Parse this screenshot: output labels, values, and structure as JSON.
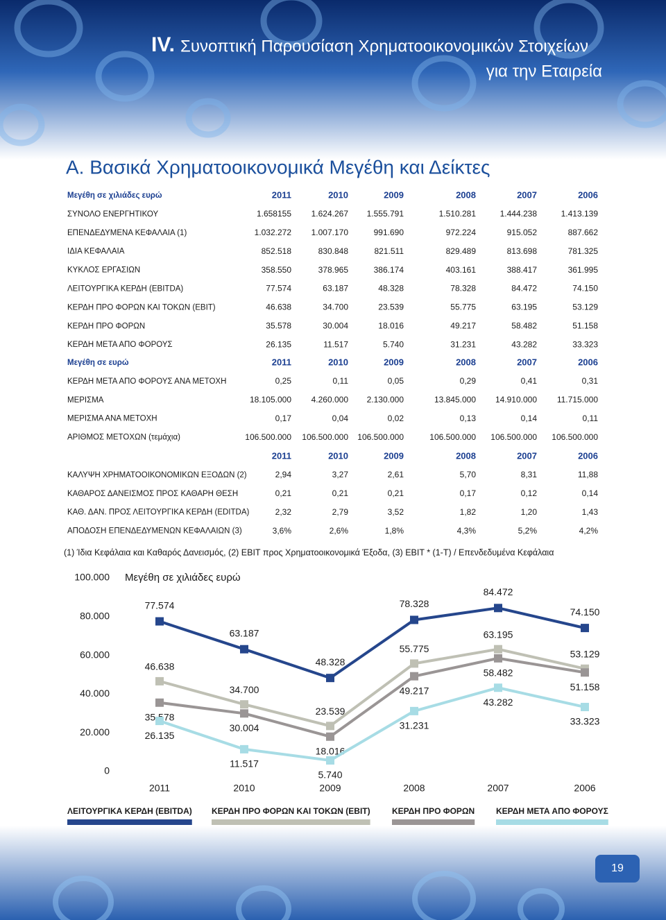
{
  "header": {
    "numeral": "IV.",
    "title_line1": "Συνοπτική Παρουσίαση Χρηματοοικονομικών Στοιχείων",
    "title_line2": "για την Εταιρεία"
  },
  "section_title": "Α. Βασικά Χρηματοοικονομικά Μεγέθη και Δείκτες",
  "tables": [
    {
      "label": "Μεγέθη σε χιλιάδες ευρώ",
      "columns": [
        "2011",
        "2010",
        "2009",
        "2008",
        "2007",
        "2006"
      ],
      "rows": [
        [
          "ΣΥΝΟΛΟ ΕΝΕΡΓΗΤΙΚΟΥ",
          "1.658155",
          "1.624.267",
          "1.555.791",
          "1.510.281",
          "1.444.238",
          "1.413.139"
        ],
        [
          "ΕΠΕΝΔΕΔΥΜΕΝΑ ΚΕΦΑΛΑΙΑ (1)",
          "1.032.272",
          "1.007.170",
          "991.690",
          "972.224",
          "915.052",
          "887.662"
        ],
        [
          "ΙΔΙΑ ΚΕΦΑΛΑΙΑ",
          "852.518",
          "830.848",
          "821.511",
          "829.489",
          "813.698",
          "781.325"
        ],
        [
          "ΚΥΚΛΟΣ ΕΡΓΑΣΙΩΝ",
          "358.550",
          "378.965",
          "386.174",
          "403.161",
          "388.417",
          "361.995"
        ],
        [
          "ΛΕΙΤΟΥΡΓΙΚΑ ΚΕΡΔΗ (EBITDA)",
          "77.574",
          "63.187",
          "48.328",
          "78.328",
          "84.472",
          "74.150"
        ],
        [
          "ΚΕΡΔΗ ΠΡΟ ΦΟΡΩΝ ΚΑΙ ΤΟΚΩΝ (EBIT)",
          "46.638",
          "34.700",
          "23.539",
          "55.775",
          "63.195",
          "53.129"
        ],
        [
          "ΚΕΡΔΗ ΠΡΟ ΦΟΡΩΝ",
          "35.578",
          "30.004",
          "18.016",
          "49.217",
          "58.482",
          "51.158"
        ],
        [
          "ΚΕΡΔΗ ΜΕΤΑ ΑΠΟ ΦΟΡΟΥΣ",
          "26.135",
          "11.517",
          "5.740",
          "31.231",
          "43.282",
          "33.323"
        ]
      ]
    },
    {
      "label": "Μεγέθη σε ευρώ",
      "columns": [
        "2011",
        "2010",
        "2009",
        "2008",
        "2007",
        "2006"
      ],
      "rows": [
        [
          "ΚΕΡΔΗ ΜΕΤΑ ΑΠΟ ΦΟΡΟΥΣ ΑΝΑ ΜΕΤΟΧΗ",
          "0,25",
          "0,11",
          "0,05",
          "0,29",
          "0,41",
          "0,31"
        ],
        [
          "ΜΕΡΙΣΜΑ",
          "18.105.000",
          "4.260.000",
          "2.130.000",
          "13.845.000",
          "14.910.000",
          "11.715.000"
        ],
        [
          "ΜΕΡΙΣΜΑ ΑΝΑ ΜΕΤΟΧΗ",
          "0,17",
          "0,04",
          "0,02",
          "0,13",
          "0,14",
          "0,11"
        ],
        [
          "ΑΡΙΘΜΟΣ ΜΕΤΟΧΩΝ (τεμάχια)",
          "106.500.000",
          "106.500.000",
          "106.500.000",
          "106.500.000",
          "106.500.000",
          "106.500.000"
        ]
      ]
    },
    {
      "columns": [
        "2011",
        "2010",
        "2009",
        "2008",
        "2007",
        "2006"
      ],
      "rows": [
        [
          "ΚΑΛΥΨΗ ΧΡΗΜΑΤΟΟΙΚΟΝΟΜΙΚΩΝ ΕΞΟΔΩΝ (2)",
          "2,94",
          "3,27",
          "2,61",
          "5,70",
          "8,31",
          "11,88"
        ],
        [
          "ΚΑΘΑΡΟΣ ΔΑΝΕΙΣΜΟΣ ΠΡΟΣ ΚΑΘΑΡΗ ΘΕΣΗ",
          "0,21",
          "0,21",
          "0,21",
          "0,17",
          "0,12",
          "0,14"
        ],
        [
          "ΚΑΘ. ΔΑΝ. ΠΡΟΣ ΛΕΙΤΟΥΡΓΙΚΑ ΚΕΡΔΗ (EDITDA)",
          "2,32",
          "2,79",
          "3,52",
          "1,82",
          "1,20",
          "1,43"
        ],
        [
          "ΑΠΟΔΟΣΗ ΕΠΕΝΔΕΔΥΜΕΝΩΝ ΚΕΦΑΛΑΙΩΝ (3)",
          "3,6%",
          "2,6%",
          "1,8%",
          "4,3%",
          "5,2%",
          "4,2%"
        ]
      ]
    }
  ],
  "footnote": "(1) Ίδια Κεφάλαια και Καθαρός Δανεισμός, (2) EBIT προς Χρηματοοικονομικά Έξοδα, (3) EBIT * (1-T) / Επενδεδυμένα Κεφάλαια",
  "chart_data": {
    "type": "line",
    "y_label": "Μεγέθη σε χιλιάδες ευρώ",
    "categories": [
      "2011",
      "2010",
      "2009",
      "2008",
      "2007",
      "2006"
    ],
    "ylim": [
      0,
      100000
    ],
    "yticks": [
      0,
      {
        "value": 20000,
        "label": "20.000"
      },
      {
        "value": 40000,
        "label": "40.000"
      },
      {
        "value": 60000,
        "label": "60.000"
      },
      {
        "value": 80000,
        "label": "80.000"
      },
      {
        "value": 100000,
        "label": "100.000"
      }
    ],
    "series": [
      {
        "name": "ΛΕΙΤΟΥΡΓΙΚΑ ΚΕΡΔΗ (EBITDA)",
        "color": "#25468c",
        "values": [
          77574,
          63187,
          48328,
          78328,
          84472,
          74150
        ],
        "value_labels": [
          "77.574",
          "63.187",
          "48.328",
          "78.328",
          "84.472",
          "74.150"
        ]
      },
      {
        "name": "ΚΕΡΔΗ ΠΡΟ ΦΟΡΩΝ ΚΑΙ ΤΟΚΩΝ (EBIT)",
        "color": "#bfc0b4",
        "values": [
          46638,
          34700,
          23539,
          55775,
          63195,
          53129
        ],
        "value_labels": [
          "46.638",
          "34.700",
          "23.539",
          "55.775",
          "63.195",
          "53.129"
        ]
      },
      {
        "name": "ΚΕΡΔΗ ΠΡΟ ΦΟΡΩΝ",
        "color": "#9a9595",
        "values": [
          35578,
          30004,
          18016,
          49217,
          58482,
          51158
        ],
        "value_labels": [
          "35.578",
          "30.004",
          "18.016",
          "49.217",
          "58.482",
          "51.158"
        ]
      },
      {
        "name": "ΚΕΡΔΗ ΜΕΤΑ ΑΠΟ ΦΟΡΟΥΣ",
        "color": "#a7dce5",
        "values": [
          26135,
          11517,
          5740,
          31231,
          43282,
          33323
        ],
        "value_labels": [
          "26.135",
          "11.517",
          "5.740",
          "31.231",
          "43.282",
          "33.323"
        ]
      }
    ]
  },
  "page_number": "19"
}
